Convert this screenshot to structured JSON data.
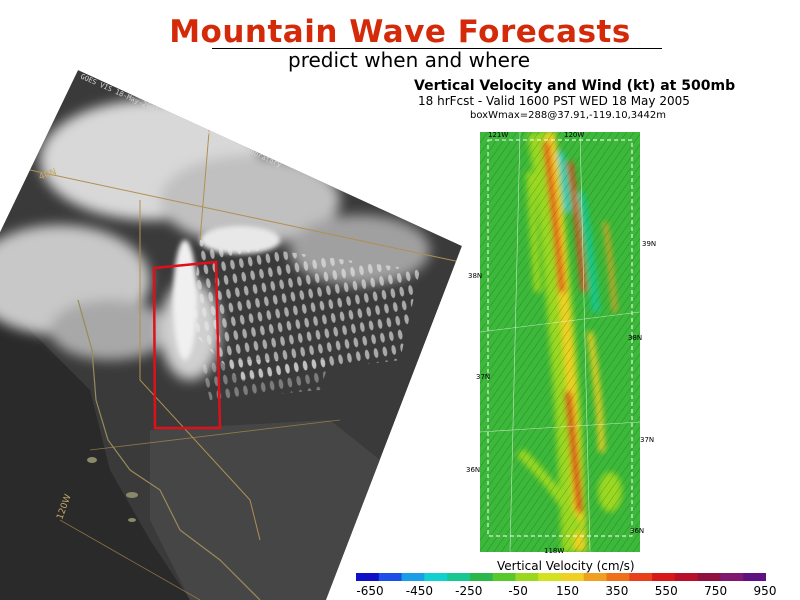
{
  "slide": {
    "title": "Mountain Wave Forecasts",
    "subtitle": "predict when and where"
  },
  "satellite": {
    "header_text": "GOES VIS 18-May-2005 0000Z Naval Research Laboratory",
    "lat_label": "40N",
    "lon_label": "120W",
    "highlight_color": "#e0101a"
  },
  "model": {
    "title": "Vertical Velocity and Wind (kt) at 500mb",
    "forecast": "18 hrFcst - Valid 1600 PST WED 18 May 2005",
    "boxwmax": "boxWmax=288@37.91,-119.10,3442m",
    "lat_labels": [
      "38N",
      "37N",
      "36N"
    ],
    "right_lat_labels": [
      "39N",
      "38N",
      "37N",
      "36N"
    ],
    "top_lon_labels": [
      "121W",
      "120W"
    ],
    "bottom_lon_label": "118W"
  },
  "colorbar": {
    "label": "Vertical Velocity (cm/s)",
    "ticks": [
      "-650",
      "-450",
      "-250",
      "-50",
      "150",
      "350",
      "550",
      "750",
      "950"
    ],
    "colors": [
      "#1010c8",
      "#1c4ee8",
      "#1a9ee8",
      "#10d0d0",
      "#18c890",
      "#2ab84a",
      "#5ac82a",
      "#9ad820",
      "#d2e21e",
      "#f0d020",
      "#f0a020",
      "#ee7018",
      "#e8401a",
      "#d81818",
      "#b8102a",
      "#901040",
      "#801870",
      "#601080"
    ]
  }
}
